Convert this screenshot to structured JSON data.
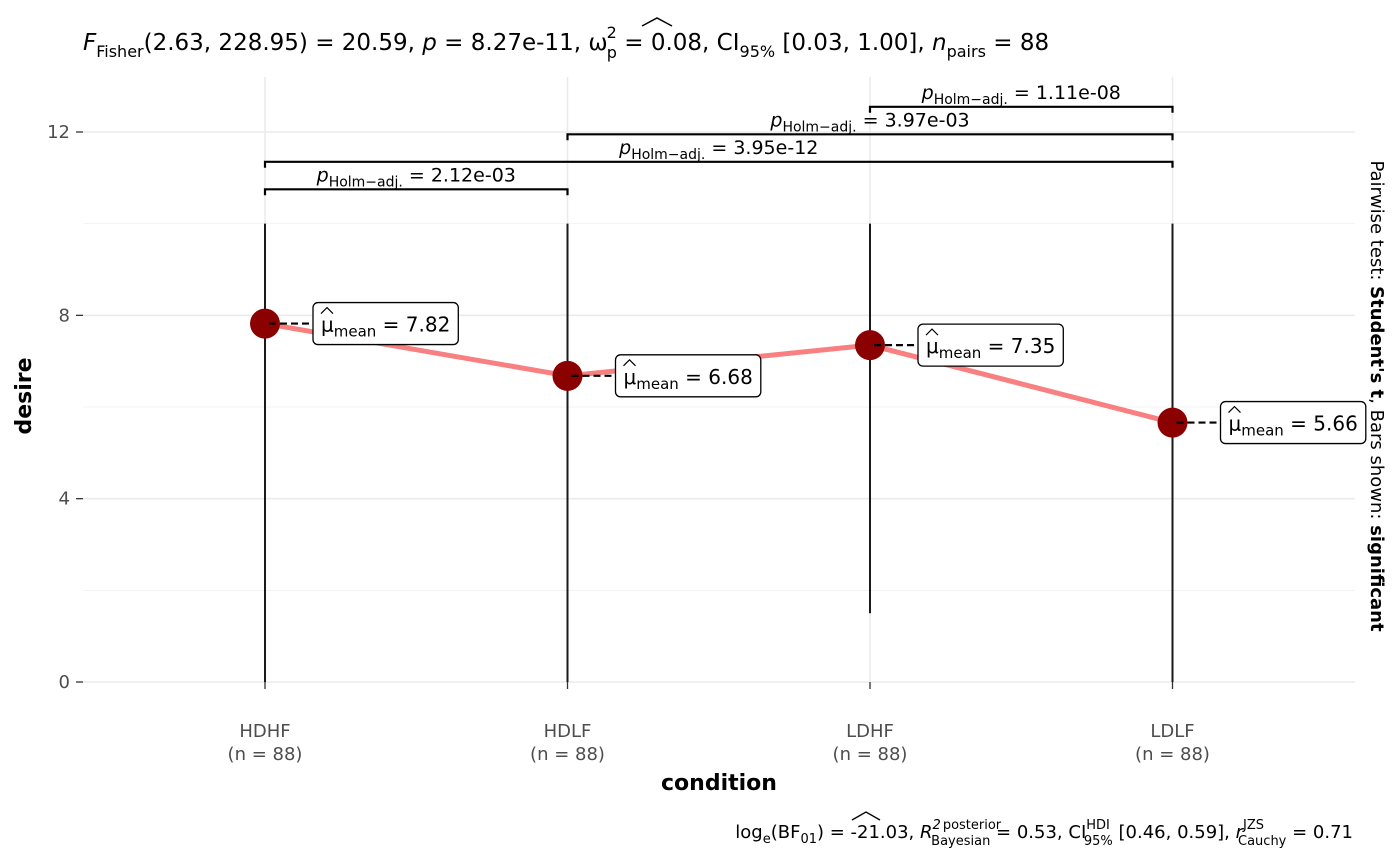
{
  "chart_data": {
    "type": "line",
    "subtitle": {
      "stat_symbol": "F",
      "stat_sub": "Fisher",
      "stat_args": "(2.63, 228.95)",
      "stat_value": " = 20.59, ",
      "p_symbol": "p",
      "p_value": " = 8.27e-11, ",
      "effect_symbol": "ω",
      "effect_sup": "2",
      "effect_sub": "p",
      "effect_value": " = 0.08, CI",
      "ci_sub": "95%",
      "ci_value": " [0.03, 1.00], ",
      "n_symbol": "n",
      "n_sub": "pairs",
      "n_value": " = 88"
    },
    "caption": {
      "bf_prefix": "log",
      "bf_sub": "e",
      "bf_args_open": "(BF",
      "bf_args_sub": "01",
      "bf_value": ") = -21.03, ",
      "r2_symbol": "R",
      "r2_sup_top": "2",
      "r2_sup": "posterior",
      "r2_sub": "Bayesian",
      "r2_value": " = 0.53, CI",
      "ci_sup": "HDI",
      "ci_sub": "95%",
      "ci_value": " [0.46, 0.59], ",
      "r_symbol": "r",
      "r_sup": "JZS",
      "r_sub": "Cauchy",
      "r_value": " = 0.71"
    },
    "xlabel": "condition",
    "ylabel": "desire",
    "categories": [
      "HDHF",
      "HDLF",
      "LDHF",
      "LDLF"
    ],
    "n_labels": [
      "(n = 88)",
      "(n = 88)",
      "(n = 88)",
      "(n = 88)"
    ],
    "ylim": [
      0,
      13.2
    ],
    "yticks": [
      0,
      4,
      8,
      12
    ],
    "grid": true,
    "series": [
      {
        "values": [
          7.82,
          6.68,
          7.35,
          5.66
        ],
        "color": "#f88080",
        "point_color": "#8b0000"
      }
    ],
    "ranges": [
      [
        0,
        10
      ],
      [
        0,
        10
      ],
      [
        1.5,
        10
      ],
      [
        0,
        10
      ]
    ],
    "mean_labels": {
      "mu": "μ",
      "sub": "mean",
      "eq": " = ",
      "values": [
        "7.82",
        "6.68",
        "7.35",
        "5.66"
      ]
    },
    "pairwise": [
      {
        "from": 0,
        "to": 1,
        "y": 10.75,
        "label_p": "p",
        "label_sub": "Holm−adj.",
        "label_value": " = 2.12e-03"
      },
      {
        "from": 0,
        "to": 3,
        "y": 11.35,
        "label_p": "p",
        "label_sub": "Holm−adj.",
        "label_value": " = 3.95e-12"
      },
      {
        "from": 1,
        "to": 3,
        "y": 11.95,
        "label_p": "p",
        "label_sub": "Holm−adj.",
        "label_value": " = 3.97e-03"
      },
      {
        "from": 2,
        "to": 3,
        "y": 12.55,
        "label_p": "p",
        "label_sub": "Holm−adj.",
        "label_value": " = 1.11e-08"
      }
    ],
    "side_note": {
      "prefix": "Pairwise test: ",
      "test": "Student's t",
      "middle": ", Bars shown: ",
      "shown": "significant"
    }
  }
}
